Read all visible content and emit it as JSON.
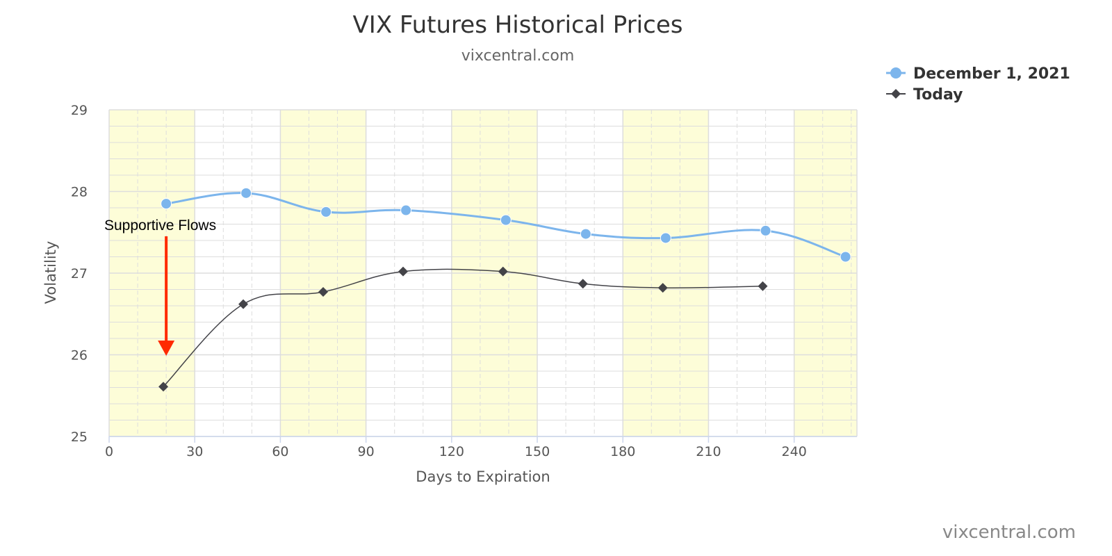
{
  "colors": {
    "series1": "#7cb5ec",
    "series2": "#434348",
    "band": "#fdfdd8",
    "grid": "#dddddd",
    "arrow": "#ff2a00"
  },
  "chart_data": {
    "type": "line",
    "title": "VIX Futures Historical Prices",
    "subtitle": "vixcentral.com",
    "xlabel": "Days to Expiration",
    "ylabel": "Volatility",
    "xlim": [
      0,
      262
    ],
    "ylim": [
      25,
      29
    ],
    "x_ticks": [
      0,
      30,
      60,
      90,
      120,
      150,
      180,
      210,
      240
    ],
    "y_ticks": [
      25,
      26,
      27,
      28,
      29
    ],
    "grid": true,
    "shaded_bands": [
      [
        0,
        30
      ],
      [
        60,
        90
      ],
      [
        120,
        150
      ],
      [
        180,
        210
      ],
      [
        240,
        262
      ]
    ],
    "legend_position": "top-right",
    "series": [
      {
        "name": "December 1, 2021",
        "marker": "circle",
        "points": [
          [
            20,
            27.85
          ],
          [
            48,
            27.98
          ],
          [
            76,
            27.75
          ],
          [
            104,
            27.77
          ],
          [
            139,
            27.65
          ],
          [
            167,
            27.48
          ],
          [
            195,
            27.43
          ],
          [
            230,
            27.52
          ],
          [
            258,
            27.2
          ]
        ]
      },
      {
        "name": "Today",
        "marker": "diamond",
        "points": [
          [
            19,
            25.61
          ],
          [
            47,
            26.62
          ],
          [
            75,
            26.77
          ],
          [
            103,
            27.02
          ],
          [
            138,
            27.02
          ],
          [
            166,
            26.87
          ],
          [
            194,
            26.82
          ],
          [
            229,
            26.84
          ]
        ]
      }
    ],
    "annotations": [
      {
        "text": "Supportive Flows",
        "arrow_x": 20,
        "arrow_from": 27.45,
        "arrow_to": 25.98
      }
    ],
    "credit": "vixcentral.com"
  }
}
